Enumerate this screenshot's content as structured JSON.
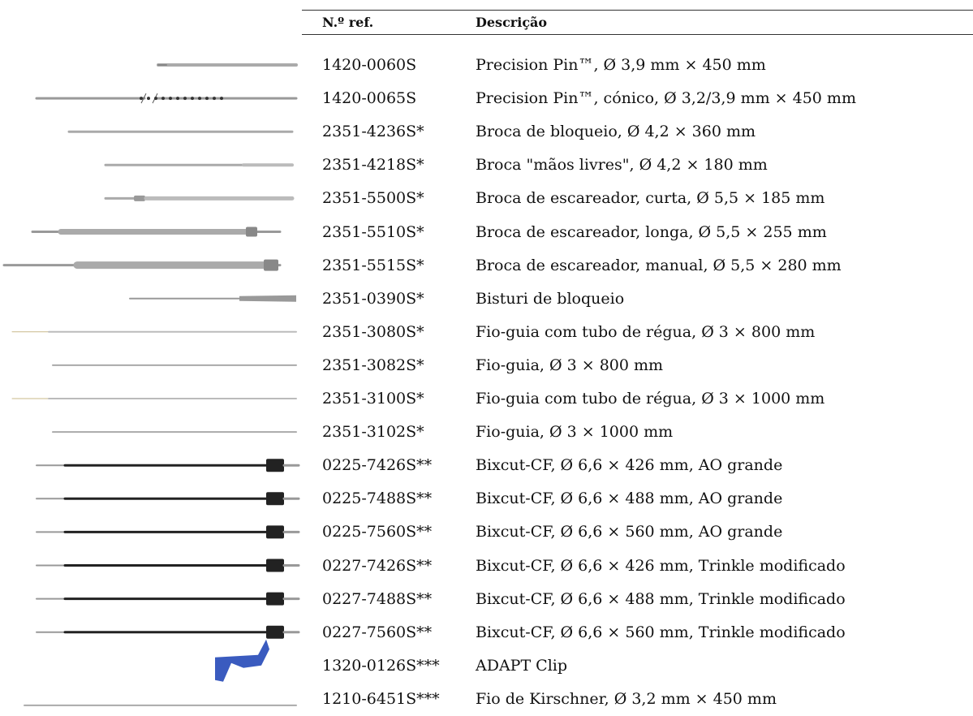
{
  "table": {
    "header": [
      "N.º ref.",
      "Descrição"
    ],
    "rows": [
      [
        "1420-0060S",
        "Precision Pin™, Ø 3,9 mm × 450 mm"
      ],
      [
        "1420-0065S",
        "Precision Pin™, cónico, Ø 3,2/3,9 mm × 450 mm"
      ],
      [
        "2351-4236S*",
        "Broca de bloqueio, Ø 4,2 × 360 mm"
      ],
      [
        "2351-4218S*",
        "Broca \"mãos livres\", Ø 4,2 × 180 mm"
      ],
      [
        "2351-5500S*",
        "Broca de escareador, curta, Ø 5,5 × 185 mm"
      ],
      [
        "2351-5510S*",
        "Broca de escareador, longa, Ø 5,5 × 255 mm"
      ],
      [
        "2351-5515S*",
        "Broca de escareador, manual, Ø 5,5 × 280 mm"
      ],
      [
        "2351-0390S*",
        "Bisturi de bloqueio"
      ],
      [
        "2351-3080S*",
        "Fio-guia com tubo de régua, Ø 3 × 800 mm"
      ],
      [
        "2351-3082S*",
        "Fio-guia, Ø 3 × 800 mm"
      ],
      [
        "2351-3100S*",
        "Fio-guia com tubo de régua, Ø 3 × 1000 mm"
      ],
      [
        "2351-3102S*",
        "Fio-guia, Ø 3 × 1000 mm"
      ],
      [
        "0225-7426S**",
        "Bixcut-CF, Ø 6,6 × 426 mm, AO grande"
      ],
      [
        "0225-7488S**",
        "Bixcut-CF, Ø 6,6 × 488 mm, AO grande"
      ],
      [
        "0225-7560S**",
        "Bixcut-CF, Ø 6,6 × 560 mm, AO grande"
      ],
      [
        "0227-7426S**",
        "Bixcut-CF, Ø 6,6 × 426 mm, Trinkle modificado"
      ],
      [
        "0227-7488S**",
        "Bixcut-CF, Ø 6,6 × 488 mm, Trinkle modificado"
      ],
      [
        "0227-7560S**",
        "Bixcut-CF, Ø 6,6 × 560 mm, Trinkle modificado"
      ],
      [
        "1320-0126S***",
        "ADAPT Clip"
      ],
      [
        "1210-6451S***",
        "Fio de Kirschner, Ø 3,2 mm × 450 mm"
      ]
    ]
  }
}
